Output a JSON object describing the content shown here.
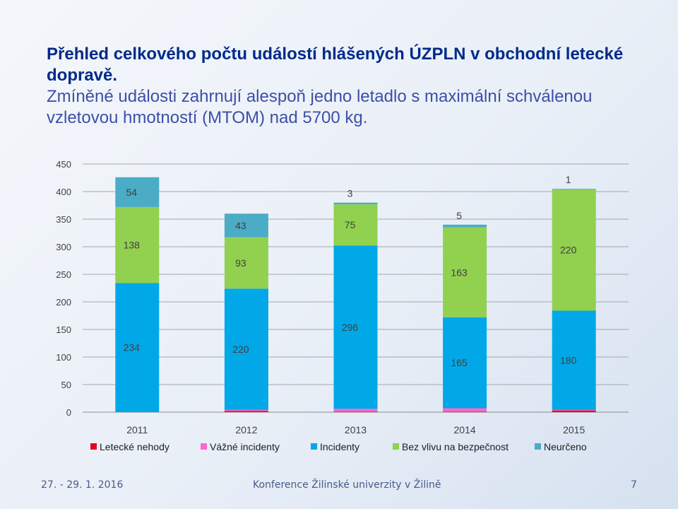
{
  "slide": {
    "title": "Přehled celkového počtu událostí hlášených ÚZPLN v obchodní letecké dopravě.",
    "subtitle": "Zmíněné události zahrnují alespoň jedno letadlo s maximální schválenou vzletovou hmotností (MTOM) nad 5700 kg.",
    "footer_date": "27. - 29. 1. 2016",
    "footer_conference": "Konference Žilinské univerzity v Žilině",
    "page_number": "7"
  },
  "chart_data": {
    "type": "bar",
    "stacked": true,
    "categories": [
      "2011",
      "2012",
      "2013",
      "2014",
      "2015"
    ],
    "ylim": [
      0,
      450
    ],
    "yticks": [
      0,
      50,
      100,
      150,
      200,
      250,
      300,
      350,
      400,
      450
    ],
    "grid": true,
    "legend_position": "bottom",
    "series": [
      {
        "name": "Letecké nehody",
        "color": "#e8001c",
        "values": [
          0,
          2,
          1,
          1,
          3
        ],
        "labels": [
          "",
          "",
          "",
          "",
          ""
        ]
      },
      {
        "name": "Vážné incidenty",
        "color": "#ff66cc",
        "values": [
          0,
          2,
          5,
          6,
          1
        ],
        "labels": [
          "",
          "",
          "",
          "",
          ""
        ]
      },
      {
        "name": "Incidenty",
        "color": "#00a8e8",
        "values": [
          234,
          220,
          296,
          165,
          180
        ],
        "labels": [
          "234",
          "220",
          "296",
          "165",
          "180"
        ]
      },
      {
        "name": "Bez vlivu na bezpečnost",
        "color": "#92d050",
        "values": [
          138,
          93,
          75,
          163,
          220
        ],
        "labels": [
          "138",
          "93",
          "75",
          "163",
          "220"
        ]
      },
      {
        "name": "Neurčeno",
        "color": "#4bacc6",
        "values": [
          54,
          43,
          3,
          5,
          1
        ],
        "labels": [
          "54",
          "43",
          "3",
          "5",
          "1"
        ]
      }
    ]
  }
}
